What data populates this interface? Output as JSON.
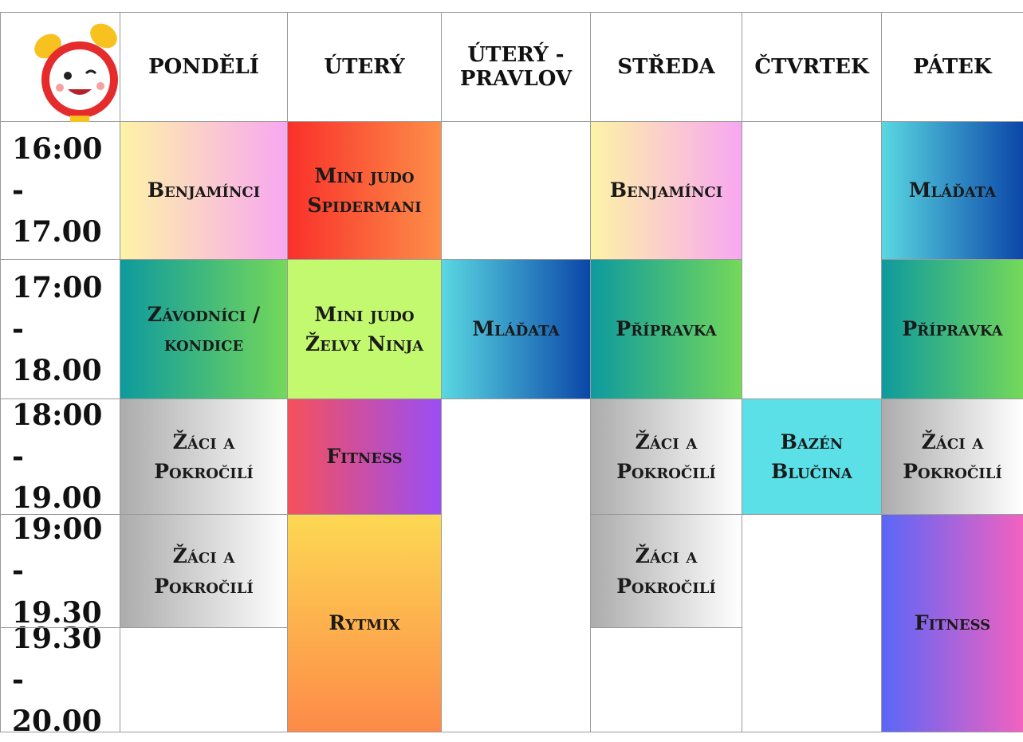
{
  "header": {
    "days": [
      "PONDĚLÍ",
      "ÚTERÝ",
      "ÚTERÝ - PRAVLOV",
      "STŘEDA",
      "ČTVRTEK",
      "PÁTEK"
    ]
  },
  "times": [
    "16:00 - 17.00",
    "17:00 - 18.00",
    "18:00 - 19.00",
    "19:00 - 19.30",
    "19.30 - 20.00"
  ],
  "columns": [
    {
      "lessons": [
        "Benjamínci",
        "Závodníci / kondice",
        "Žáci a Pokročilí",
        "Žáci a Pokročilí"
      ]
    },
    {
      "lessons": [
        "Mini judo Spidermani",
        "Mini judo Želvy Ninja",
        "Fitness",
        "Rytmix"
      ]
    },
    {
      "lessons": [
        "Mláďata"
      ]
    },
    {
      "lessons": [
        "Benjamínci",
        "Přípravka",
        "Žáci a Pokročilí",
        "Žáci a Pokročilí"
      ]
    },
    {
      "lessons": [
        "Bazén Blučina"
      ]
    },
    {
      "lessons": [
        "Mláďata",
        "Přípravka",
        "Žáci a Pokročilí",
        "Fitness"
      ]
    }
  ]
}
